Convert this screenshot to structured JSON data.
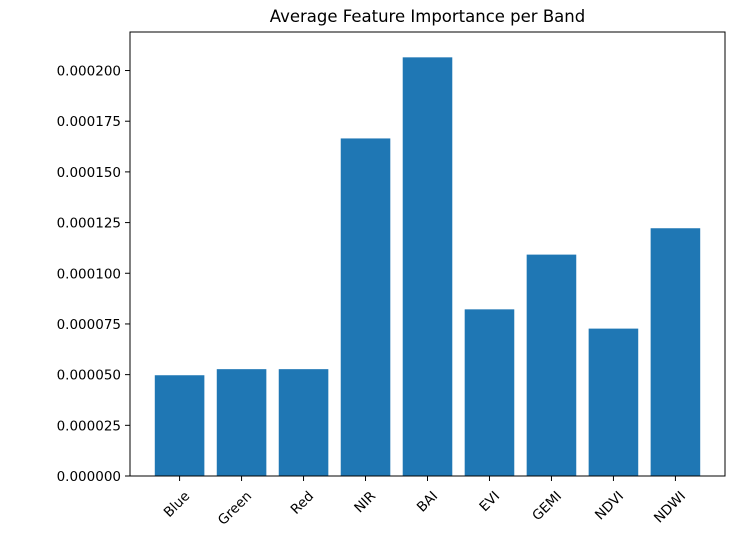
{
  "chart_data": {
    "type": "bar",
    "title": "Average Feature Importance per Band",
    "xlabel": "",
    "ylabel": "",
    "categories": [
      "Blue",
      "Green",
      "Red",
      "NIR",
      "BAI",
      "EVI",
      "GEMI",
      "NDVI",
      "NDWI"
    ],
    "values": [
      4.97e-05,
      5.27e-05,
      5.27e-05,
      0.0001665,
      0.0002065,
      8.22e-05,
      0.0001092,
      7.27e-05,
      0.0001222
    ],
    "ylim": [
      0,
      0.000219
    ],
    "yticks": [
      0,
      2.5e-05,
      5e-05,
      7.5e-05,
      0.0001,
      0.000125,
      0.00015,
      0.000175,
      0.0002
    ],
    "ytick_labels": [
      "0.000000",
      "0.000025",
      "0.000050",
      "0.000075",
      "0.000100",
      "0.000125",
      "0.000150",
      "0.000175",
      "0.000200"
    ],
    "bar_color": "#1f77b4",
    "grid": false,
    "legend": "none"
  }
}
